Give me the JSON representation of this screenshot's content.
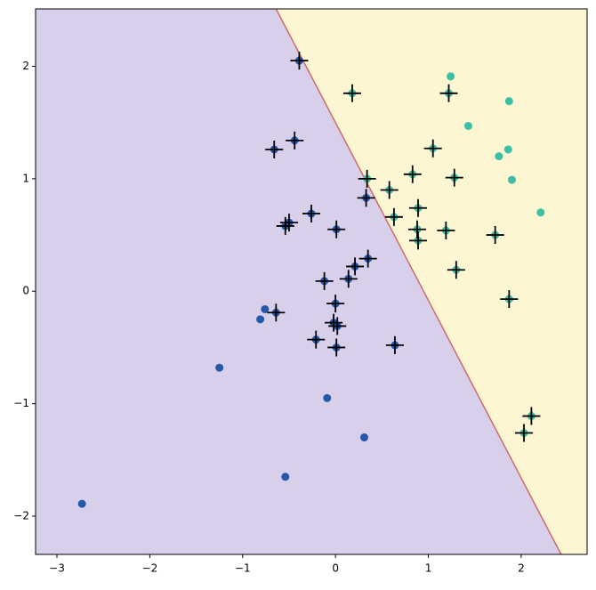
{
  "chart_data": {
    "type": "scatter",
    "xlim": [
      -3.23,
      2.71
    ],
    "ylim": [
      -2.34,
      2.51
    ],
    "xticks": [
      {
        "value": -3,
        "label": "−3"
      },
      {
        "value": -2,
        "label": "−2"
      },
      {
        "value": -1,
        "label": "−1"
      },
      0,
      1,
      2
    ],
    "yticks": [
      {
        "value": -2,
        "label": "−2"
      },
      {
        "value": -1,
        "label": "−1"
      },
      0,
      1,
      2
    ],
    "regions": {
      "left_color": "#d8cfeb",
      "right_color": "#fdf6d2",
      "boundary_color": "#d06a6a",
      "boundary": {
        "x": [
          -0.64,
          2.43
        ],
        "y": [
          2.51,
          -2.34
        ]
      }
    },
    "series": [
      {
        "color": "#2359a8",
        "x": [
          -2.73,
          -1.25,
          -0.54,
          -0.09,
          0.31,
          -0.81,
          -0.76,
          -0.39,
          -0.66,
          -0.44,
          0.33,
          -0.26,
          -0.54,
          -0.5,
          0.01,
          0.35,
          0.21,
          -0.12,
          0.14,
          0.0,
          -0.64,
          -0.02,
          0.02,
          -0.21,
          0.64,
          0.01
        ],
        "y": [
          -1.89,
          -0.68,
          -1.65,
          -0.95,
          -1.3,
          -0.25,
          -0.16,
          2.05,
          1.26,
          1.34,
          0.83,
          0.69,
          0.58,
          0.61,
          0.55,
          0.29,
          0.22,
          0.09,
          0.11,
          -0.11,
          -0.19,
          -0.28,
          -0.31,
          -0.43,
          -0.48,
          -0.5
        ]
      },
      {
        "color": "#3dbfa5",
        "x": [
          1.24,
          1.87,
          1.43,
          1.86,
          1.76,
          1.9,
          2.21,
          0.18,
          1.22,
          1.05,
          0.34,
          0.83,
          1.28,
          0.58,
          0.63,
          0.89,
          0.88,
          1.19,
          0.89,
          1.72,
          1.3,
          1.87,
          2.11,
          2.03
        ],
        "y": [
          1.91,
          1.69,
          1.47,
          1.26,
          1.2,
          0.99,
          0.7,
          1.76,
          1.76,
          1.27,
          1.0,
          1.04,
          1.01,
          0.9,
          0.66,
          0.74,
          0.55,
          0.54,
          0.45,
          0.5,
          0.19,
          -0.07,
          -1.11,
          -1.26
        ]
      }
    ],
    "support_vectors": {
      "color": "#000000",
      "x": [
        -0.39,
        0.18,
        1.22,
        -0.66,
        -0.44,
        1.05,
        0.34,
        0.83,
        1.28,
        0.58,
        0.33,
        0.63,
        0.89,
        -0.26,
        -0.54,
        -0.5,
        0.01,
        0.88,
        1.19,
        0.89,
        1.72,
        0.35,
        0.21,
        1.3,
        -0.12,
        0.14,
        0.0,
        -0.64,
        1.87,
        -0.02,
        0.02,
        -0.21,
        0.64,
        0.01,
        2.11,
        2.03
      ],
      "y": [
        2.05,
        1.76,
        1.76,
        1.26,
        1.34,
        1.27,
        1.0,
        1.04,
        1.01,
        0.9,
        0.83,
        0.66,
        0.74,
        0.69,
        0.58,
        0.61,
        0.55,
        0.55,
        0.54,
        0.45,
        0.5,
        0.29,
        0.22,
        0.19,
        0.09,
        0.11,
        -0.11,
        -0.19,
        -0.07,
        -0.28,
        -0.31,
        -0.43,
        -0.48,
        -0.5,
        -1.11,
        -1.26
      ]
    }
  }
}
